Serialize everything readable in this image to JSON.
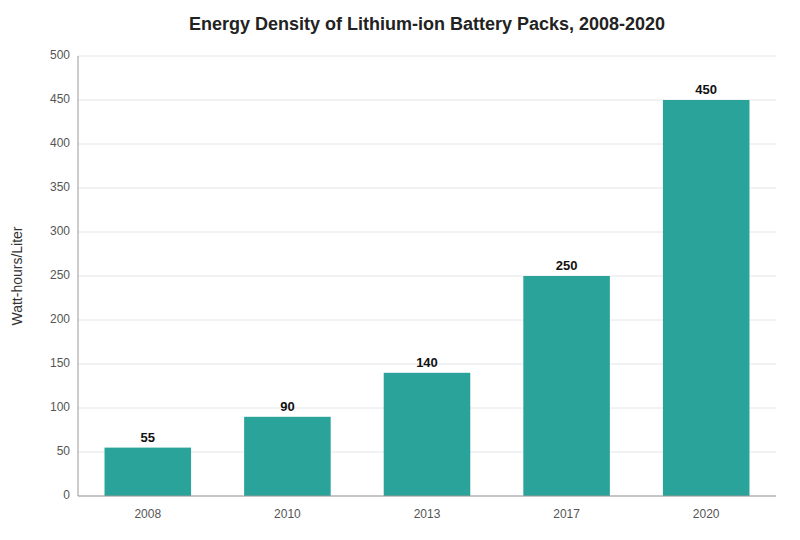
{
  "chart_data": {
    "type": "bar",
    "title": "Energy Density of Lithium-ion Battery Packs, 2008-2020",
    "categories": [
      "2008",
      "2010",
      "2013",
      "2017",
      "2020"
    ],
    "values": [
      55,
      90,
      140,
      250,
      450
    ],
    "color": "#2aa49a",
    "ylabel": "Watt-hours/Liter",
    "ylim": [
      0,
      500
    ],
    "yticks": [
      0,
      50,
      100,
      150,
      200,
      250,
      300,
      350,
      400,
      450,
      500
    ],
    "grid": true,
    "data_labels": true
  }
}
